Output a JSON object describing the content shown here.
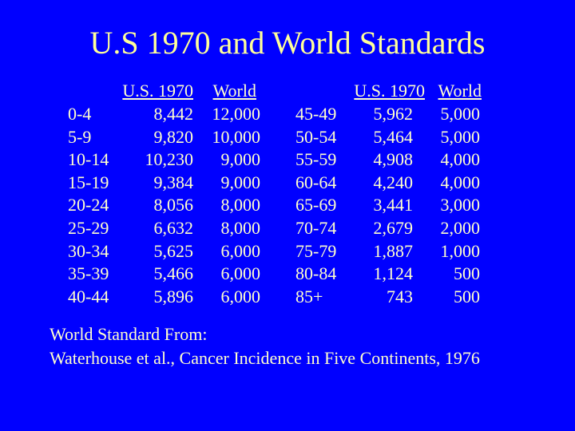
{
  "title": "U.S 1970 and World Standards",
  "tables": [
    {
      "headers": [
        "U.S. 1970",
        "World"
      ],
      "rows": [
        [
          "0-4",
          "8,442",
          "12,000"
        ],
        [
          "5-9",
          "9,820",
          "10,000"
        ],
        [
          "10-14",
          "10,230",
          "9,000"
        ],
        [
          "15-19",
          "9,384",
          "9,000"
        ],
        [
          "20-24",
          "8,056",
          "8,000"
        ],
        [
          "25-29",
          "6,632",
          "8,000"
        ],
        [
          "30-34",
          "5,625",
          "6,000"
        ],
        [
          "35-39",
          "5,466",
          "6,000"
        ],
        [
          "40-44",
          "5,896",
          "6,000"
        ]
      ]
    },
    {
      "headers": [
        "U.S. 1970",
        "World"
      ],
      "rows": [
        [
          "45-49",
          "5,962",
          "5,000"
        ],
        [
          "50-54",
          "5,464",
          "5,000"
        ],
        [
          "55-59",
          "4,908",
          "4,000"
        ],
        [
          "60-64",
          "4,240",
          "4,000"
        ],
        [
          "65-69",
          "3,441",
          "3,000"
        ],
        [
          "70-74",
          "2,679",
          "2,000"
        ],
        [
          "75-79",
          "1,887",
          "1,000"
        ],
        [
          "80-84",
          "1,124",
          "500"
        ],
        [
          "85+",
          "743",
          "500"
        ]
      ]
    }
  ],
  "footnote": [
    "World Standard From:",
    "Waterhouse et al., Cancer Incidence in Five Continents, 1976"
  ]
}
